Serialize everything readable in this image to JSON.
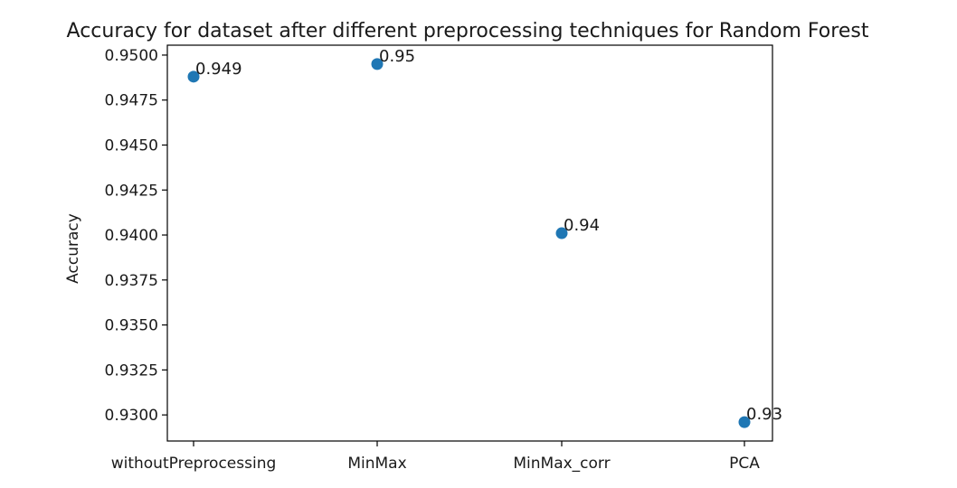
{
  "chart_data": {
    "type": "scatter",
    "title": "Accuracy for dataset after different preprocessing techniques for Random Forest",
    "xlabel": "",
    "ylabel": "Accuracy",
    "categories": [
      "withoutPreprocessing",
      "MinMax",
      "MinMax_corr",
      "PCA"
    ],
    "values": [
      0.9488,
      0.9495,
      0.9401,
      0.9296
    ],
    "data_labels": [
      "0.949",
      "0.95",
      "0.94",
      "0.93"
    ],
    "ylim": [
      0.92855,
      0.95055
    ],
    "yticks": [
      0.93,
      0.9325,
      0.935,
      0.9375,
      0.94,
      0.9425,
      0.945,
      0.9475,
      0.95
    ],
    "ytick_labels": [
      "0.9300",
      "0.9325",
      "0.9350",
      "0.9375",
      "0.9400",
      "0.9425",
      "0.9450",
      "0.9475",
      "0.9500"
    ],
    "grid": false,
    "legend": "none",
    "marker_color": "#1f77b4"
  }
}
